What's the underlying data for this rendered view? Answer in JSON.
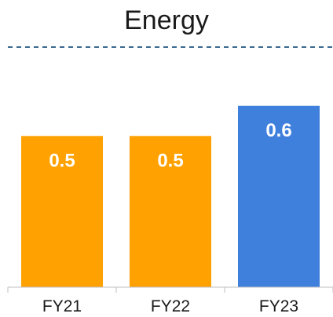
{
  "chart_data": {
    "type": "bar",
    "title": "Energy",
    "categories": [
      "FY21",
      "FY22",
      "FY23"
    ],
    "values": [
      0.5,
      0.5,
      0.6
    ],
    "data_labels": [
      "0.5",
      "0.5",
      "0.6"
    ],
    "colors": [
      "#FFA100",
      "#FFA100",
      "#3F80DC"
    ],
    "xlabel": "",
    "ylabel": "",
    "ylim": [
      0,
      0.82
    ],
    "grid": false,
    "legend": "none",
    "reference_line": {
      "style": "dashed",
      "color": "#3A6A8F"
    }
  }
}
